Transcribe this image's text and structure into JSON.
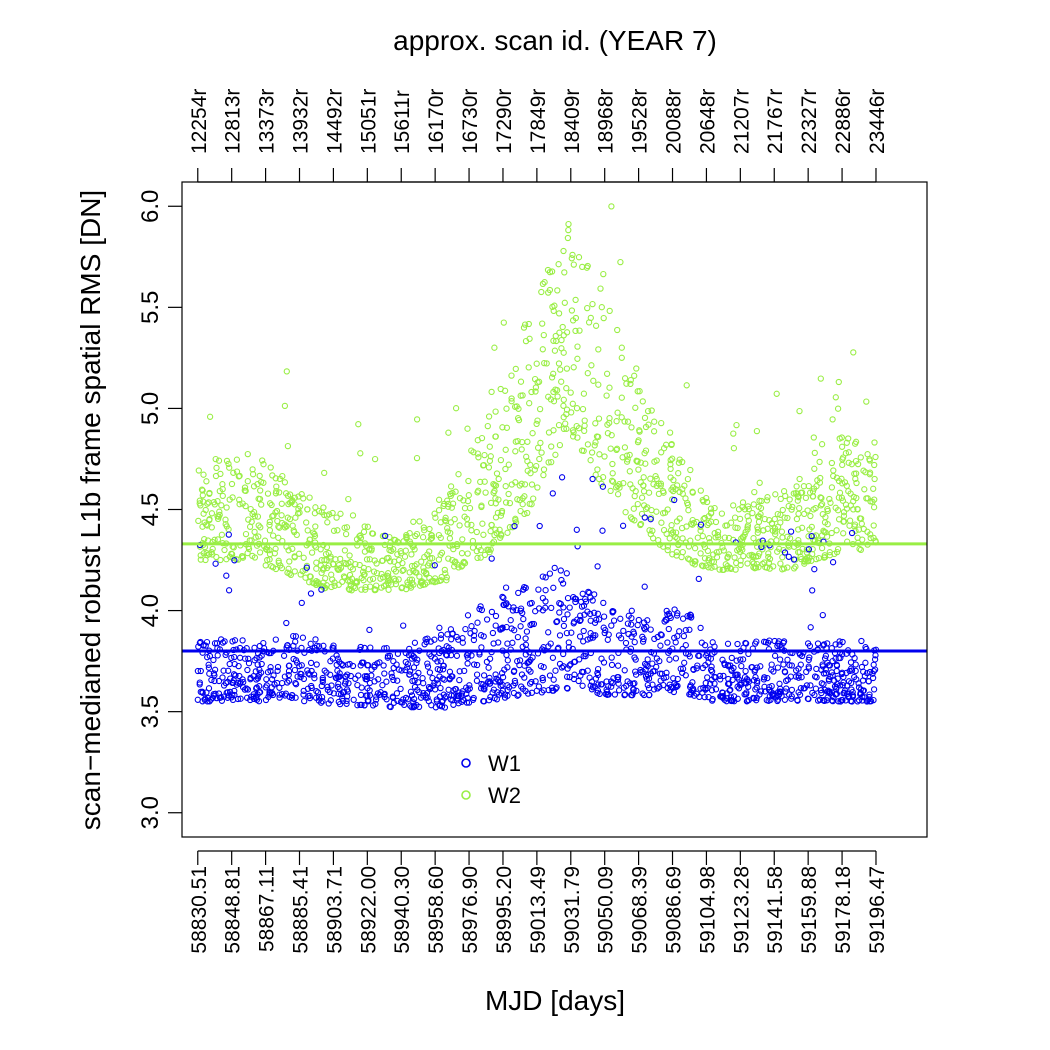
{
  "chart_data": {
    "type": "scatter",
    "title": "",
    "top_axis_label": "approx. scan id. (YEAR 7)",
    "xlabel": "MJD [days]",
    "ylabel": "scan−medianed robust L1b frame spatial RMS [DN]",
    "xlim": [
      58822,
      59224
    ],
    "ylim": [
      2.88,
      6.12
    ],
    "y_ticks": [
      "3.0",
      "3.5",
      "4.0",
      "4.5",
      "5.0",
      "5.5",
      "6.0"
    ],
    "x_ticks": [
      "58830.51",
      "58848.81",
      "58867.11",
      "58885.41",
      "58903.71",
      "58922.00",
      "58940.30",
      "58958.60",
      "58976.90",
      "58995.20",
      "59013.49",
      "59031.79",
      "59050.09",
      "59068.39",
      "59086.69",
      "59104.98",
      "59123.28",
      "59141.58",
      "59159.88",
      "59178.18",
      "59196.47"
    ],
    "top_ticks": [
      "12254r",
      "12813r",
      "13373r",
      "13932r",
      "14492r",
      "15051r",
      "15611r",
      "16170r",
      "16730r",
      "17290r",
      "17849r",
      "18409r",
      "18968r",
      "19528r",
      "20088r",
      "20648r",
      "21207r",
      "21767r",
      "22327r",
      "22886r",
      "23446r"
    ],
    "grid": false,
    "legend_position": "bottom-center",
    "series": [
      {
        "name": "W1",
        "color": "#0000ee",
        "median": 3.8,
        "x_range": [
          58830.51,
          59196.47
        ],
        "profile": [
          {
            "x": 58830.5,
            "low": 3.55,
            "high": 3.85
          },
          {
            "x": 58880,
            "low": 3.55,
            "high": 3.88
          },
          {
            "x": 58940,
            "low": 3.52,
            "high": 3.82
          },
          {
            "x": 58965,
            "low": 3.52,
            "high": 3.9
          },
          {
            "x": 58985,
            "low": 3.55,
            "high": 4.05
          },
          {
            "x": 59005,
            "low": 3.58,
            "high": 4.1
          },
          {
            "x": 59020,
            "low": 3.6,
            "high": 4.25
          },
          {
            "x": 59035,
            "low": 3.6,
            "high": 4.15
          },
          {
            "x": 59055,
            "low": 3.58,
            "high": 4.05
          },
          {
            "x": 59075,
            "low": 3.58,
            "high": 3.95
          },
          {
            "x": 59090,
            "low": 3.6,
            "high": 4.05
          },
          {
            "x": 59110,
            "low": 3.55,
            "high": 3.85
          },
          {
            "x": 59150,
            "low": 3.55,
            "high": 3.85
          },
          {
            "x": 59196.5,
            "low": 3.55,
            "high": 3.85
          }
        ]
      },
      {
        "name": "W2",
        "color": "#99ee44",
        "median": 4.33,
        "x_range": [
          58830.51,
          59196.47
        ],
        "profile": [
          {
            "x": 58830.5,
            "low": 4.25,
            "high": 4.75
          },
          {
            "x": 58860,
            "low": 4.25,
            "high": 4.8
          },
          {
            "x": 58900,
            "low": 4.1,
            "high": 4.5
          },
          {
            "x": 58940,
            "low": 4.1,
            "high": 4.35
          },
          {
            "x": 58965,
            "low": 4.15,
            "high": 4.6
          },
          {
            "x": 58990,
            "low": 4.3,
            "high": 5.0
          },
          {
            "x": 59010,
            "low": 4.5,
            "high": 5.5
          },
          {
            "x": 59030,
            "low": 4.9,
            "high": 5.9
          },
          {
            "x": 59050,
            "low": 4.6,
            "high": 5.6
          },
          {
            "x": 59070,
            "low": 4.4,
            "high": 5.2
          },
          {
            "x": 59090,
            "low": 4.25,
            "high": 4.8
          },
          {
            "x": 59110,
            "low": 4.2,
            "high": 4.5
          },
          {
            "x": 59150,
            "low": 4.2,
            "high": 4.6
          },
          {
            "x": 59180,
            "low": 4.3,
            "high": 4.9
          },
          {
            "x": 59196.5,
            "low": 4.3,
            "high": 4.8
          }
        ]
      }
    ]
  }
}
